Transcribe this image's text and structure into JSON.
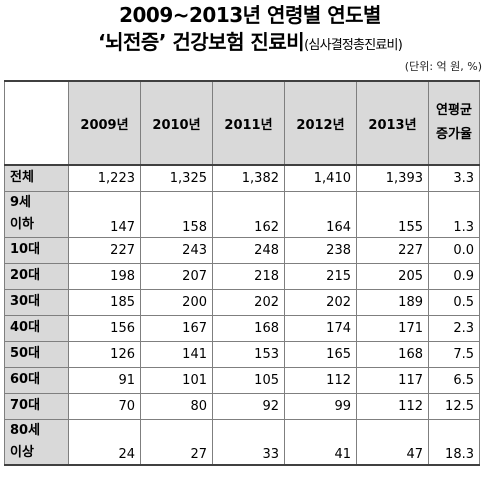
{
  "title_line1": "2009~2013년  연령별  연도별",
  "title_line2_main": "‘뇌전증’  건강보험  진료비",
  "title_line2_sub": "(심사결정총진료비)",
  "unit": "(단위: 억 원, %)",
  "table": {
    "headers": [
      "2009년",
      "2010년",
      "2011년",
      "2012년",
      "2013년"
    ],
    "rate_header_line1": "연평균",
    "rate_header_line2": "증가율",
    "rows": [
      {
        "label1": "전체",
        "label2": "",
        "values": [
          "1,223",
          "1,325",
          "1,382",
          "1,410",
          "1,393"
        ],
        "rate": "3.3"
      },
      {
        "label1": "9세",
        "label2": "이하",
        "values": [
          "147",
          "158",
          "162",
          "164",
          "155"
        ],
        "rate": "1.3"
      },
      {
        "label1": "10대",
        "label2": "",
        "values": [
          "227",
          "243",
          "248",
          "238",
          "227"
        ],
        "rate": "0.0"
      },
      {
        "label1": "20대",
        "label2": "",
        "values": [
          "198",
          "207",
          "218",
          "215",
          "205"
        ],
        "rate": "0.9"
      },
      {
        "label1": "30대",
        "label2": "",
        "values": [
          "185",
          "200",
          "202",
          "202",
          "189"
        ],
        "rate": "0.5"
      },
      {
        "label1": "40대",
        "label2": "",
        "values": [
          "156",
          "167",
          "168",
          "174",
          "171"
        ],
        "rate": "2.3"
      },
      {
        "label1": "50대",
        "label2": "",
        "values": [
          "126",
          "141",
          "153",
          "165",
          "168"
        ],
        "rate": "7.5"
      },
      {
        "label1": "60대",
        "label2": "",
        "values": [
          "91",
          "101",
          "105",
          "112",
          "117"
        ],
        "rate": "6.5"
      },
      {
        "label1": "70대",
        "label2": "",
        "values": [
          "70",
          "80",
          "92",
          "99",
          "112"
        ],
        "rate": "12.5"
      },
      {
        "label1": "80세",
        "label2": "이상",
        "values": [
          "24",
          "27",
          "33",
          "41",
          "47"
        ],
        "rate": "18.3"
      }
    ]
  }
}
